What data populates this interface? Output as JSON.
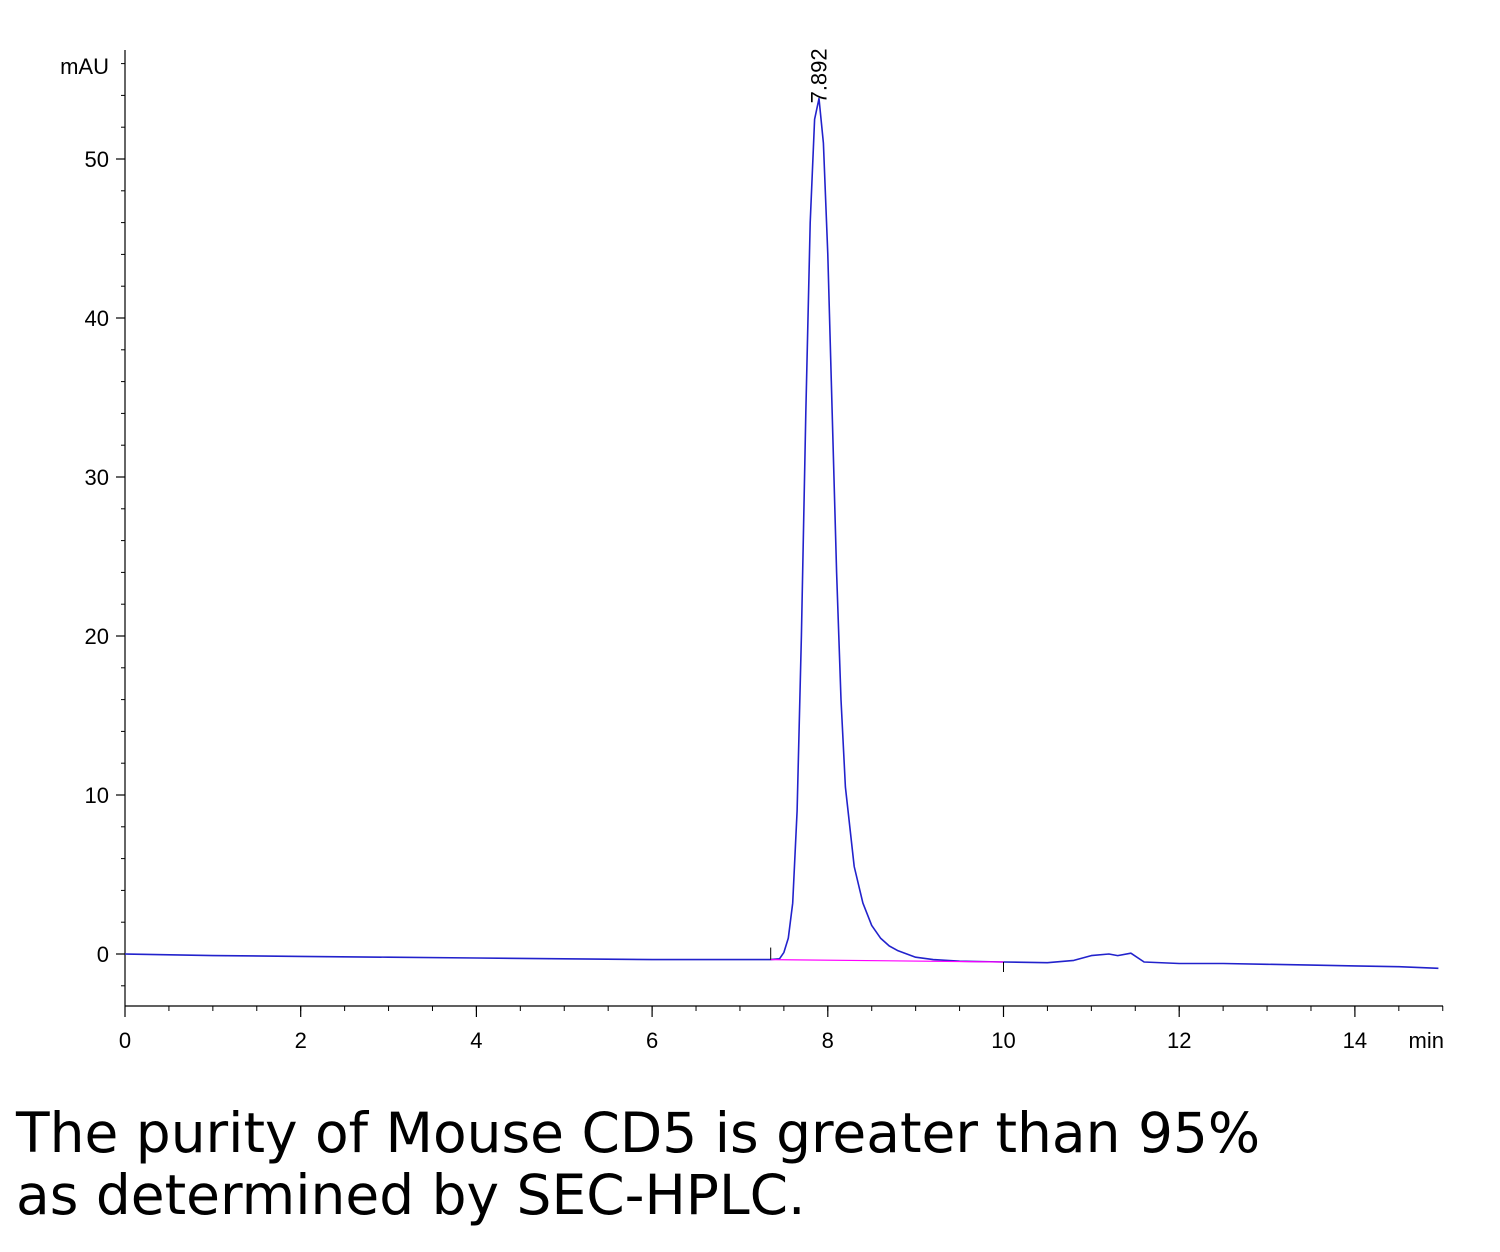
{
  "chart_data": {
    "type": "line",
    "y_unit_label": "mAU",
    "x_unit_label": "min",
    "xlim": [
      0,
      15
    ],
    "ylim": [
      -3.3,
      57
    ],
    "x_ticks": [
      0,
      2,
      4,
      6,
      8,
      10,
      12,
      14
    ],
    "y_ticks": [
      0,
      10,
      20,
      30,
      40,
      50
    ],
    "grid": false,
    "peak": {
      "retention_time": 7.892,
      "label": "7.892",
      "height": 54
    },
    "series": [
      {
        "color": "#2222cc",
        "x": [
          0,
          1,
          2,
          3,
          4,
          5,
          6,
          7,
          7.35,
          7.45,
          7.5,
          7.55,
          7.6,
          7.65,
          7.7,
          7.75,
          7.8,
          7.85,
          7.9,
          7.95,
          8.0,
          8.05,
          8.1,
          8.15,
          8.2,
          8.3,
          8.4,
          8.5,
          8.6,
          8.7,
          8.8,
          9.0,
          9.2,
          9.5,
          10.0,
          10.5,
          10.8,
          11.0,
          11.2,
          11.3,
          11.45,
          11.6,
          12.0,
          12.5,
          13.0,
          13.5,
          14.0,
          14.5,
          14.95
        ],
        "y": [
          0.0,
          -0.1,
          -0.15,
          -0.2,
          -0.25,
          -0.3,
          -0.35,
          -0.35,
          -0.35,
          -0.3,
          0.1,
          1.0,
          3.2,
          9.0,
          20.0,
          34.0,
          46.0,
          52.5,
          53.8,
          51.0,
          44.0,
          34.0,
          24.0,
          16.0,
          10.5,
          5.5,
          3.2,
          1.8,
          1.0,
          0.5,
          0.2,
          -0.2,
          -0.35,
          -0.45,
          -0.5,
          -0.55,
          -0.4,
          -0.1,
          0.0,
          -0.1,
          0.05,
          -0.5,
          -0.6,
          -0.6,
          -0.65,
          -0.7,
          -0.75,
          -0.8,
          -0.9
        ]
      },
      {
        "color": "#ff00ff",
        "x": [
          7.35,
          10.0
        ],
        "y": [
          -0.35,
          -0.5
        ]
      }
    ]
  },
  "caption": {
    "line1": "The purity of Mouse CD5 is greater than 95%",
    "line2": "as determined by SEC-HPLC."
  }
}
